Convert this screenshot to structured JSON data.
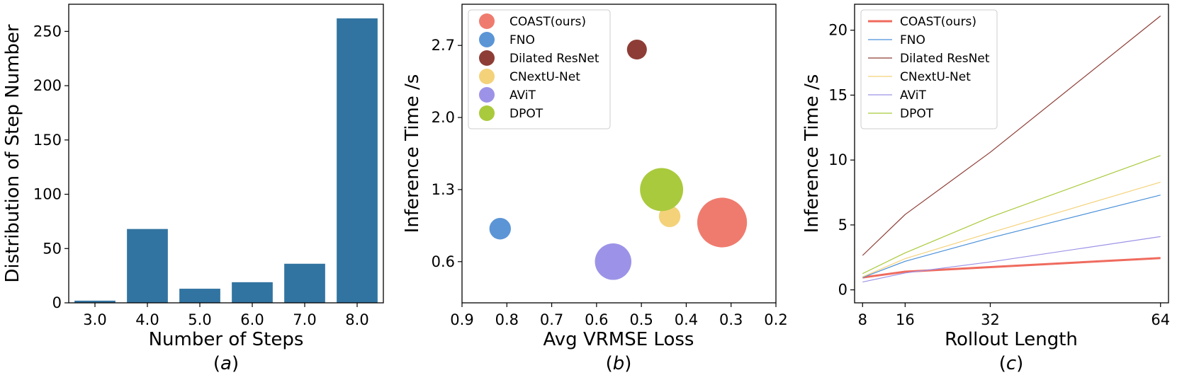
{
  "chart_data": [
    {
      "type": "bar",
      "xlabel": "Number of Steps",
      "ylabel": "Distribution of Step Number",
      "sublabel": "a",
      "categories": [
        "3.0",
        "4.0",
        "5.0",
        "6.0",
        "7.0",
        "8.0"
      ],
      "values": [
        2,
        68,
        13,
        19,
        36,
        262
      ],
      "ylim": [
        0,
        275
      ],
      "yticks": [
        "0",
        "50",
        "100",
        "150",
        "200",
        "250"
      ],
      "bar_color": "#3274a1",
      "grid": false
    },
    {
      "type": "scatter",
      "xlabel": "Avg VRMSE Loss",
      "ylabel": "Inference Time /s",
      "sublabel": "b",
      "xlim": [
        0.9,
        0.2
      ],
      "xaxis_reversed": true,
      "ylim": [
        0.2,
        3.1
      ],
      "xticks": [
        "0.9",
        "0.8",
        "0.7",
        "0.6",
        "0.5",
        "0.4",
        "0.3",
        "0.2"
      ],
      "yticks": [
        "0.6",
        "1.3",
        "2.0",
        "2.7"
      ],
      "legend_position": "top-left",
      "grid": false,
      "series": [
        {
          "name": "COAST(ours)",
          "color": "#ef7b6e",
          "x": 0.32,
          "y": 0.98,
          "size": 30
        },
        {
          "name": "FNO",
          "color": "#5b95d6",
          "x": 0.815,
          "y": 0.92,
          "size": 13
        },
        {
          "name": "Dilated ResNet",
          "color": "#8e3d36",
          "x": 0.51,
          "y": 2.66,
          "size": 12
        },
        {
          "name": "CNextU-Net",
          "color": "#f4d27a",
          "x": 0.437,
          "y": 1.04,
          "size": 13
        },
        {
          "name": "AViT",
          "color": "#9c93e8",
          "x": 0.563,
          "y": 0.6,
          "size": 22
        },
        {
          "name": "DPOT",
          "color": "#a9ca3c",
          "x": 0.455,
          "y": 1.3,
          "size": 26
        }
      ]
    },
    {
      "type": "line",
      "xlabel": "Rollout Length",
      "ylabel": "Inference Time /s",
      "sublabel": "c",
      "x": [
        8,
        16,
        32,
        64
      ],
      "xticks": [
        "8",
        "16",
        "32",
        "64"
      ],
      "xlim": [
        6.5,
        65.5
      ],
      "ylim": [
        -1,
        22
      ],
      "yticks": [
        "0",
        "5",
        "10",
        "15",
        "20"
      ],
      "legend_position": "top-left",
      "grid": false,
      "series": [
        {
          "name": "COAST(ours)",
          "color": "#ef6b5e",
          "width": 3,
          "values": [
            0.95,
            1.4,
            1.75,
            2.45
          ]
        },
        {
          "name": "FNO",
          "color": "#4a90d9",
          "width": 1.2,
          "values": [
            0.95,
            2.2,
            4.0,
            7.3
          ]
        },
        {
          "name": "Dilated ResNet",
          "color": "#8e3d36",
          "width": 1.2,
          "values": [
            2.65,
            5.8,
            10.6,
            21.1
          ]
        },
        {
          "name": "CNextU-Net",
          "color": "#f4d27a",
          "width": 1.2,
          "values": [
            1.0,
            2.4,
            4.4,
            8.3
          ]
        },
        {
          "name": "AViT",
          "color": "#9c93e8",
          "width": 1.2,
          "values": [
            0.6,
            1.3,
            2.15,
            4.1
          ]
        },
        {
          "name": "DPOT",
          "color": "#a9ca3c",
          "width": 1.2,
          "values": [
            1.25,
            2.85,
            5.6,
            10.35
          ]
        }
      ]
    }
  ]
}
